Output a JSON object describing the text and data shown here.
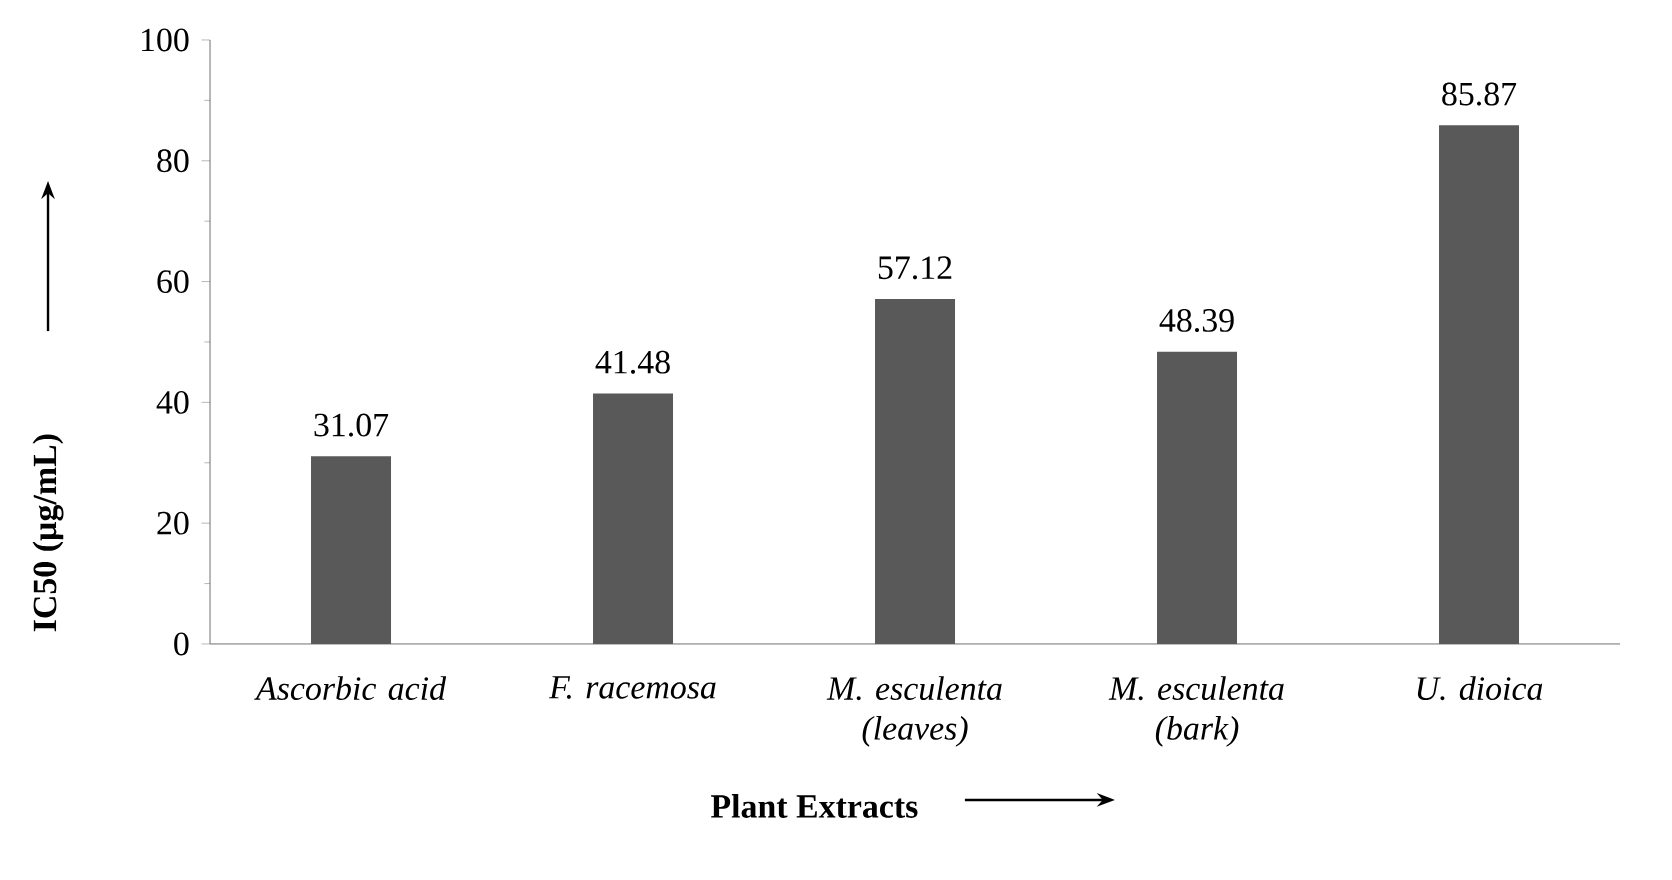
{
  "chart_data": {
    "type": "bar",
    "xlabel": "Plant Extracts",
    "ylabel": "IC50 (µg/mL)",
    "categories": [
      "Ascorbic acid",
      "F. racemosa",
      "M. esculenta (leaves)",
      "M. esculenta (bark)",
      "U. dioica"
    ],
    "values": [
      31.07,
      41.48,
      57.12,
      48.39,
      85.87
    ],
    "color": "#595959",
    "ylim": [
      0,
      100
    ],
    "yticks": [
      0,
      20,
      40,
      60,
      80,
      100
    ],
    "data_labels": true,
    "grid": false
  }
}
